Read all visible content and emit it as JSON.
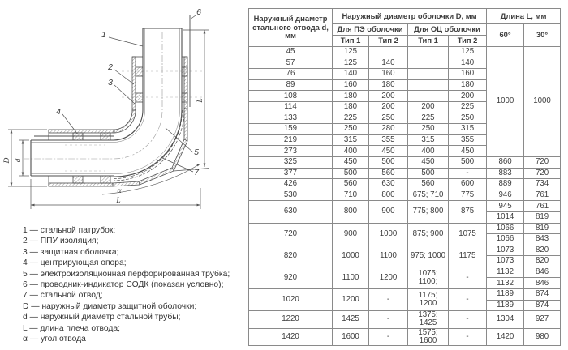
{
  "diagram": {
    "callouts": {
      "c1": "1",
      "c2": "2",
      "c3": "3",
      "c4": "4",
      "c5": "5",
      "c6": "6",
      "c7": "7",
      "dim_D": "D",
      "dim_d": "d",
      "dim_L_vert": "L",
      "dim_L_horiz": "L",
      "angle": "α"
    }
  },
  "legend": {
    "items": [
      "1 — стальной патрубок;",
      "2 — ППУ изоляция;",
      "3 — защитная оболочка;",
      "4 — центрирующая опора;",
      "5 — электроизоляционная перфорированная трубка;",
      "6 — проводник-индикатор СОДК (показан условно);",
      "7 — стальной отвод;",
      "D — наружный диаметр защитной оболочки;",
      "d — наружный диаметр стальной трубы;",
      "L — длина плеча отвода;",
      "α — угол отвода"
    ]
  },
  "table": {
    "header": {
      "col_d": "Наружный диаметр стального отвода d, мм",
      "group_shell": "Наружный диаметр оболочки D, мм",
      "sub_pe": "Для ПЭ оболочки",
      "sub_oc": "Для ОЦ оболочки",
      "pe_type1": "Тип 1",
      "pe_type2": "Тип 2",
      "oc_type1": "Тип 1",
      "oc_type2": "Тип 2",
      "group_length": "Длина L, мм",
      "angle_60": "60°",
      "angle_30": "30°"
    },
    "rows": [
      {
        "cells": [
          {
            "v": "45"
          },
          {
            "v": "125"
          },
          {
            "v": ""
          },
          {
            "v": ""
          },
          {
            "v": "125"
          },
          {
            "v": "1000",
            "rs": 10
          },
          {
            "v": "1000",
            "rs": 10
          }
        ]
      },
      {
        "cells": [
          {
            "v": "57"
          },
          {
            "v": "125"
          },
          {
            "v": "140"
          },
          {
            "v": ""
          },
          {
            "v": "140"
          }
        ]
      },
      {
        "cells": [
          {
            "v": "76"
          },
          {
            "v": "140"
          },
          {
            "v": "160"
          },
          {
            "v": ""
          },
          {
            "v": "160"
          }
        ]
      },
      {
        "cells": [
          {
            "v": "89"
          },
          {
            "v": "160"
          },
          {
            "v": "180"
          },
          {
            "v": ""
          },
          {
            "v": "180"
          }
        ]
      },
      {
        "cells": [
          {
            "v": "108"
          },
          {
            "v": "180"
          },
          {
            "v": "200"
          },
          {
            "v": ""
          },
          {
            "v": "200"
          }
        ]
      },
      {
        "cells": [
          {
            "v": "114"
          },
          {
            "v": "180"
          },
          {
            "v": "200"
          },
          {
            "v": "200"
          },
          {
            "v": "225"
          }
        ]
      },
      {
        "cells": [
          {
            "v": "133"
          },
          {
            "v": "225"
          },
          {
            "v": "250"
          },
          {
            "v": "225"
          },
          {
            "v": "250"
          }
        ]
      },
      {
        "cells": [
          {
            "v": "159"
          },
          {
            "v": "250"
          },
          {
            "v": "280"
          },
          {
            "v": "250"
          },
          {
            "v": "315"
          }
        ]
      },
      {
        "cells": [
          {
            "v": "219"
          },
          {
            "v": "315"
          },
          {
            "v": "355"
          },
          {
            "v": "315"
          },
          {
            "v": "355"
          }
        ]
      },
      {
        "cells": [
          {
            "v": "273"
          },
          {
            "v": "400"
          },
          {
            "v": "450"
          },
          {
            "v": "400"
          },
          {
            "v": "450"
          }
        ]
      },
      {
        "cells": [
          {
            "v": "325"
          },
          {
            "v": "450"
          },
          {
            "v": "500"
          },
          {
            "v": "450"
          },
          {
            "v": "500"
          },
          {
            "v": "860"
          },
          {
            "v": "720"
          }
        ]
      },
      {
        "cells": [
          {
            "v": "377"
          },
          {
            "v": "500"
          },
          {
            "v": "560"
          },
          {
            "v": "500"
          },
          {
            "v": "-"
          },
          {
            "v": "883"
          },
          {
            "v": "720"
          }
        ]
      },
      {
        "cells": [
          {
            "v": "426"
          },
          {
            "v": "560"
          },
          {
            "v": "630"
          },
          {
            "v": "560"
          },
          {
            "v": "600"
          },
          {
            "v": "889"
          },
          {
            "v": "734"
          }
        ]
      },
      {
        "cells": [
          {
            "v": "530"
          },
          {
            "v": "710"
          },
          {
            "v": "800"
          },
          {
            "v": "675; 710"
          },
          {
            "v": "775"
          },
          {
            "v": "946"
          },
          {
            "v": "761"
          }
        ]
      },
      {
        "cells": [
          {
            "v": "630",
            "rs": 2
          },
          {
            "v": "800",
            "rs": 2
          },
          {
            "v": "900",
            "rs": 2
          },
          {
            "v": "775; 800",
            "rs": 2
          },
          {
            "v": "875",
            "rs": 2
          },
          {
            "v": "945"
          },
          {
            "v": "761"
          }
        ]
      },
      {
        "cells": [
          {
            "v": "1014"
          },
          {
            "v": "819"
          }
        ]
      },
      {
        "cells": [
          {
            "v": "720",
            "rs": 2
          },
          {
            "v": "900",
            "rs": 2
          },
          {
            "v": "1000",
            "rs": 2
          },
          {
            "v": "875; 900",
            "rs": 2
          },
          {
            "v": "1075",
            "rs": 2
          },
          {
            "v": "1066"
          },
          {
            "v": "819"
          }
        ]
      },
      {
        "cells": [
          {
            "v": "1066"
          },
          {
            "v": "843"
          }
        ]
      },
      {
        "cells": [
          {
            "v": "820",
            "rs": 2
          },
          {
            "v": "1000",
            "rs": 2
          },
          {
            "v": "1100",
            "rs": 2
          },
          {
            "v": "975; 1000",
            "rs": 2
          },
          {
            "v": "1175",
            "rs": 2
          },
          {
            "v": "1073"
          },
          {
            "v": "820"
          }
        ]
      },
      {
        "cells": [
          {
            "v": "1073"
          },
          {
            "v": "820"
          }
        ]
      },
      {
        "cells": [
          {
            "v": "920",
            "rs": 2
          },
          {
            "v": "1100",
            "rs": 2
          },
          {
            "v": "1200",
            "rs": 2
          },
          {
            "v": "1075;\n1100;",
            "rs": 2
          },
          {
            "v": "-",
            "rs": 2
          },
          {
            "v": "1132"
          },
          {
            "v": "846"
          }
        ]
      },
      {
        "cells": [
          {
            "v": "1132"
          },
          {
            "v": "846"
          }
        ]
      },
      {
        "cells": [
          {
            "v": "1020",
            "rs": 2
          },
          {
            "v": "1200",
            "rs": 2
          },
          {
            "v": "-",
            "rs": 2
          },
          {
            "v": "1175; 1200",
            "rs": 2
          },
          {
            "v": "-",
            "rs": 2
          },
          {
            "v": "1189"
          },
          {
            "v": "874"
          }
        ]
      },
      {
        "cells": [
          {
            "v": "1189"
          },
          {
            "v": "874"
          }
        ]
      },
      {
        "cells": [
          {
            "v": "1220"
          },
          {
            "v": "1425"
          },
          {
            "v": "-"
          },
          {
            "v": "1375; 1425"
          },
          {
            "v": "-"
          },
          {
            "v": "1304"
          },
          {
            "v": "927"
          }
        ]
      },
      {
        "cells": [
          {
            "v": "1420"
          },
          {
            "v": "1600"
          },
          {
            "v": "-"
          },
          {
            "v": "1575; 1600"
          },
          {
            "v": "-"
          },
          {
            "v": "1420"
          },
          {
            "v": "980"
          }
        ]
      }
    ]
  },
  "colors": {
    "line": "#4d4d4d",
    "centerline": "#9a9a9a",
    "table_border": "#8a8a8a",
    "text": "#3d3d3d"
  }
}
